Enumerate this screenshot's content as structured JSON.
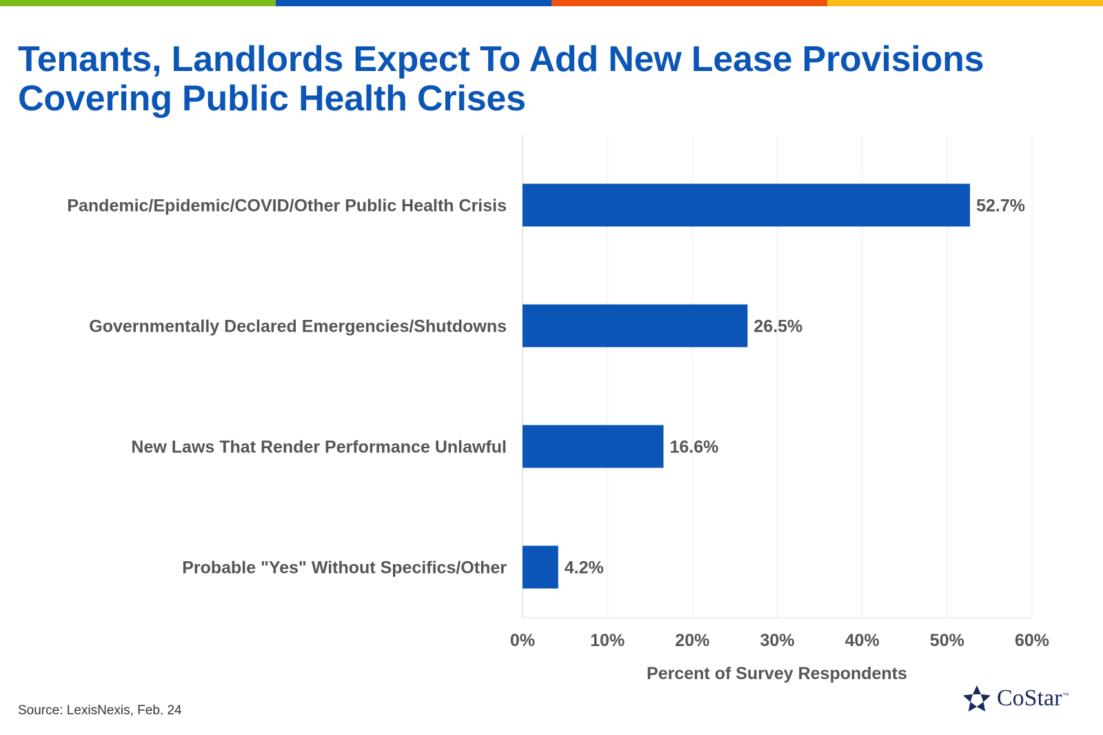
{
  "header": {
    "title_line1": "Tenants, Landlords Expect To Add New Lease Provisions",
    "title_line2": "Covering Public Health Crises"
  },
  "colors": {
    "title": "#0a55b5",
    "bar": "#0a55b5",
    "text": "#555555",
    "grid": "#ececec",
    "topbar": [
      "#7cbd1e",
      "#0a55b5",
      "#f1540e",
      "#fdbb15"
    ]
  },
  "chart_data": {
    "type": "bar",
    "orientation": "horizontal",
    "categories": [
      "Pandemic/Epidemic/COVID/Other Public Health Crisis",
      "Governmentally Declared Emergencies/Shutdowns",
      "New Laws That Render Performance Unlawful",
      "Probable \"Yes\" Without Specifics/Other"
    ],
    "values": [
      52.7,
      26.5,
      16.6,
      4.2
    ],
    "value_labels": [
      "52.7%",
      "26.5%",
      "16.6%",
      "4.2%"
    ],
    "xlim": [
      0,
      60
    ],
    "xticks": [
      0,
      10,
      20,
      30,
      40,
      50,
      60
    ],
    "xtick_labels": [
      "0%",
      "10%",
      "20%",
      "30%",
      "40%",
      "50%",
      "60%"
    ],
    "xlabel": "Percent of Survey Respondents",
    "ylabel": "",
    "grid": true
  },
  "footer": {
    "source": "Source: LexisNexis, Feb. 24",
    "logo_text": "CoStar",
    "logo_tm": "™"
  }
}
